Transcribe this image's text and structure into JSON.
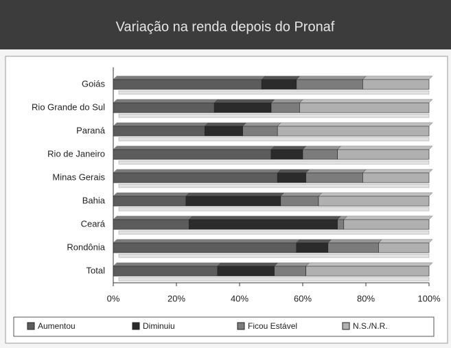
{
  "chart_data": {
    "type": "bar_stacked_horizontal",
    "title": "Variação na renda depois do Pronaf",
    "categories": [
      "Goiás",
      "Rio Grande do Sul",
      "Paraná",
      "Rio de Janeiro",
      "Minas Gerais",
      "Bahia",
      "Ceará",
      "Rondônia",
      "Total"
    ],
    "series": [
      {
        "name": "Aumentou",
        "color": "#5c5c5c",
        "values": [
          47,
          32,
          29,
          50,
          52,
          23,
          24,
          58,
          33
        ]
      },
      {
        "name": "Diminuiu",
        "color": "#2b2b2b",
        "values": [
          11,
          18,
          12,
          10,
          9,
          30,
          47,
          10,
          18
        ]
      },
      {
        "name": "Ficou Estável",
        "color": "#7c7c7c",
        "values": [
          21,
          9,
          11,
          11,
          18,
          12,
          2,
          16,
          10
        ]
      },
      {
        "name": "N.S./N.R.",
        "color": "#b0b0b0",
        "values": [
          21,
          41,
          48,
          29,
          21,
          35,
          27,
          16,
          39
        ]
      }
    ],
    "xlim": [
      0,
      100
    ],
    "xticks": [
      {
        "value": 0,
        "label": "0%"
      },
      {
        "value": 20,
        "label": "20%"
      },
      {
        "value": 40,
        "label": "40%"
      },
      {
        "value": 60,
        "label": "60%"
      },
      {
        "value": 80,
        "label": "80%"
      },
      {
        "value": 100,
        "label": "100%"
      }
    ],
    "legend": "bottom"
  }
}
